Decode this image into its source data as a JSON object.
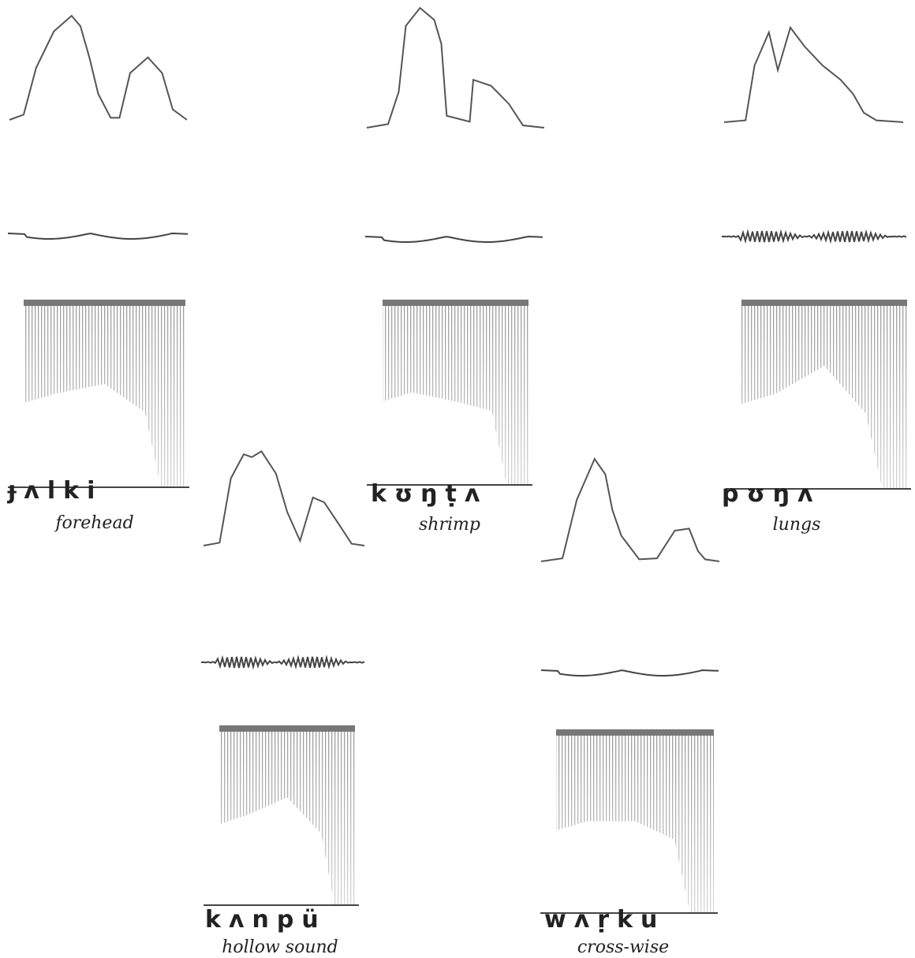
{
  "panels": [
    {
      "transcription": "ɟʌlki",
      "gloss": "forehead"
    },
    {
      "transcription": "kʊŋṭʌ",
      "gloss": "shrimp"
    },
    {
      "transcription": "pʊŋʌ",
      "gloss": "lungs"
    },
    {
      "transcription": "kʌnpü",
      "gloss": "hollow sound"
    },
    {
      "transcription": "wʌṛku",
      "gloss": "cross-wise"
    }
  ]
}
